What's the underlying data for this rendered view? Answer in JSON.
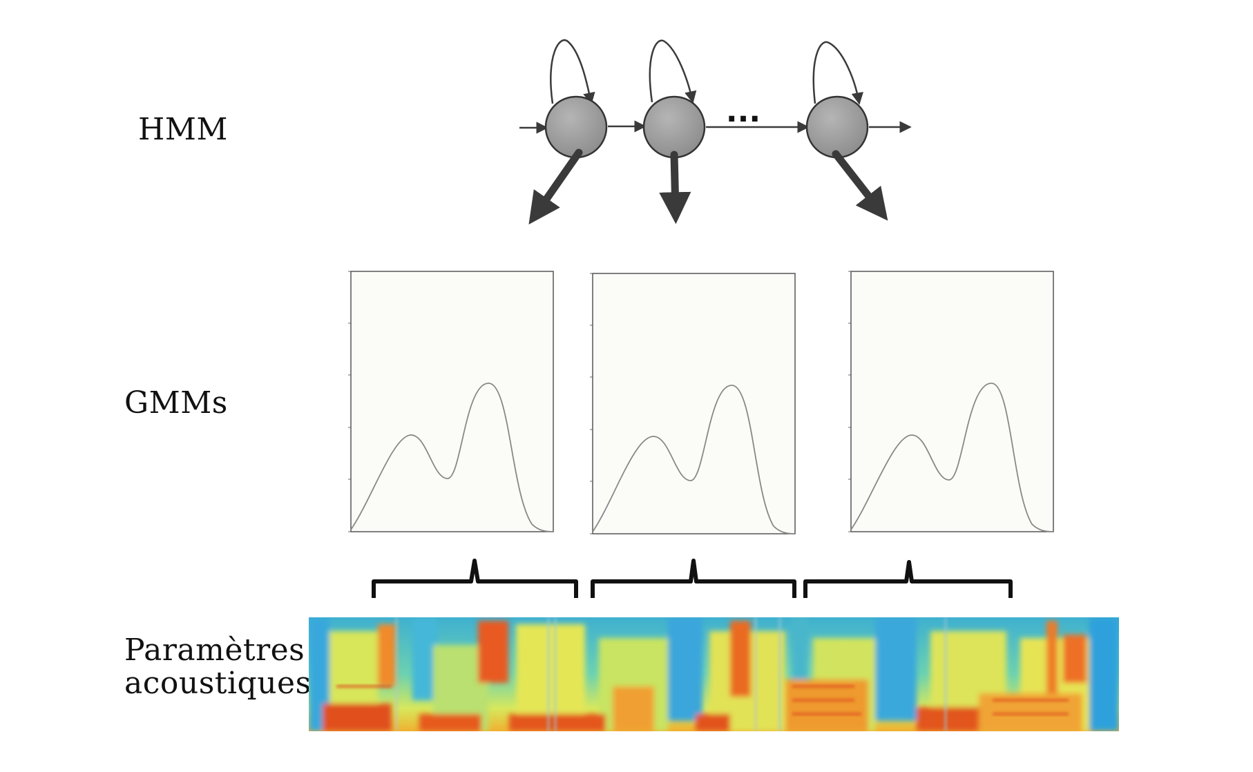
{
  "labels": {
    "hmm": "HMM",
    "gmm": "GMMs",
    "acoustic_line1": "Paramètres",
    "acoustic_line2": "acoustiques"
  },
  "hmm": {
    "states": 3,
    "ellipsis": "...",
    "state_color": "#9a9a9a",
    "arrow_color": "#3a3a3a"
  },
  "gmm_panels": 3,
  "colors": {
    "panel_bg": "#fbfbf8",
    "panel_border": "#555555",
    "curve": "#888888",
    "brace": "#111111"
  }
}
